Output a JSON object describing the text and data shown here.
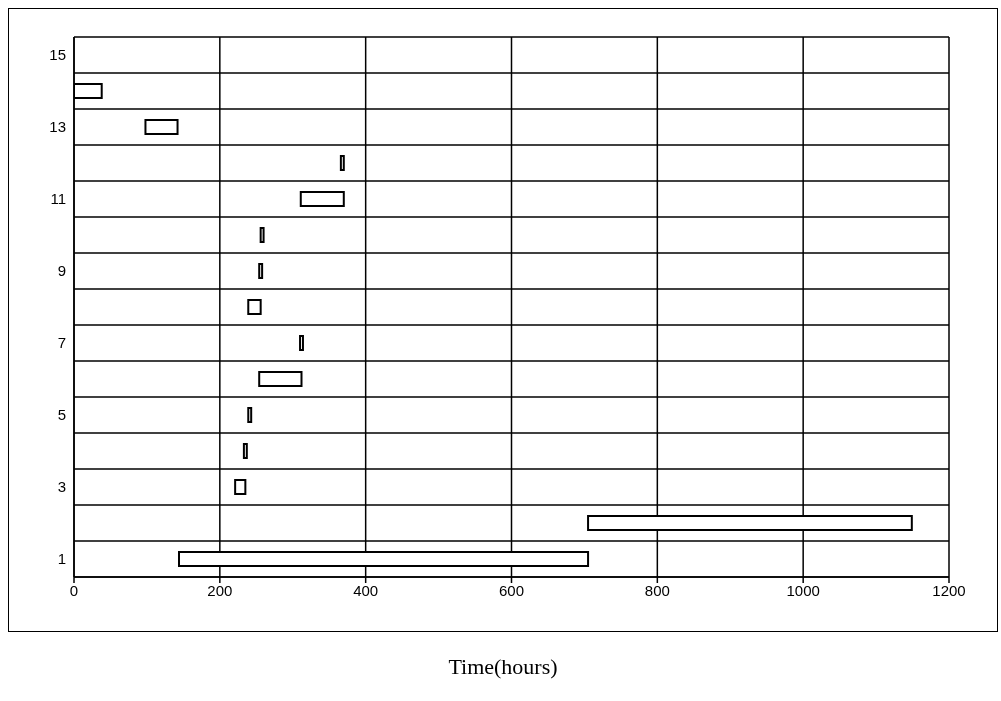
{
  "chart_data": {
    "type": "bar",
    "orientation": "horizontal",
    "xlabel": "Time(hours)",
    "categories": [
      "15",
      null,
      "13",
      null,
      "11",
      null,
      "9",
      null,
      "7",
      null,
      "5",
      null,
      "3",
      null,
      "1"
    ],
    "base": [
      null,
      0,
      98,
      366,
      311,
      256,
      254,
      239,
      310,
      254,
      239,
      233,
      221,
      705,
      144
    ],
    "values": [
      null,
      38,
      44,
      4,
      59,
      4,
      4,
      17,
      4,
      58,
      4,
      4,
      14,
      444,
      561
    ],
    "color": "#000000",
    "xlim": [
      0,
      1200
    ],
    "xticks": [
      0,
      200,
      400,
      600,
      800,
      1000,
      1200
    ],
    "grid": true
  }
}
